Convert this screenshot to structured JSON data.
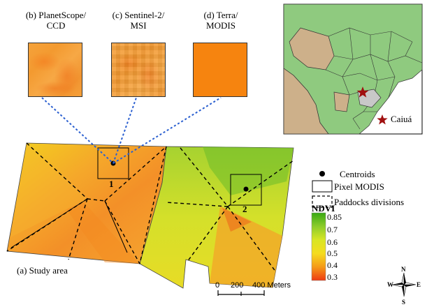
{
  "panels": {
    "planetscope": {
      "line1": "(b) PlanetScope/",
      "line2": "CCD"
    },
    "sentinel": {
      "line1": "(c) Sentinel-2/",
      "line2": "MSI"
    },
    "modis": {
      "line1": "(d) Terra/",
      "line2": "MODIS"
    }
  },
  "study_area_label": "(a) Study area",
  "pixel_labels": [
    "1",
    "2"
  ],
  "inset": {
    "location_label": "Caiuá",
    "location_marker_color": "#a01010"
  },
  "legend": {
    "centroids": "Centroids",
    "pixel_modis": "Pixel MODIS",
    "paddocks": "Paddocks divisions"
  },
  "ndvi": {
    "title": "NDVI",
    "ticks": [
      "0.85",
      "0.7",
      "0.6",
      "0.5",
      "0.4",
      "0.3"
    ],
    "colors": [
      "#38a814",
      "#8ccc2a",
      "#d8e623",
      "#f5dc1e",
      "#f59a18",
      "#ee3a12"
    ]
  },
  "scale_bar": {
    "labels": [
      "0",
      "200",
      "400 Meters"
    ]
  },
  "north_arrow": {
    "n": "N",
    "s": "S",
    "e": "E",
    "w": "W"
  }
}
